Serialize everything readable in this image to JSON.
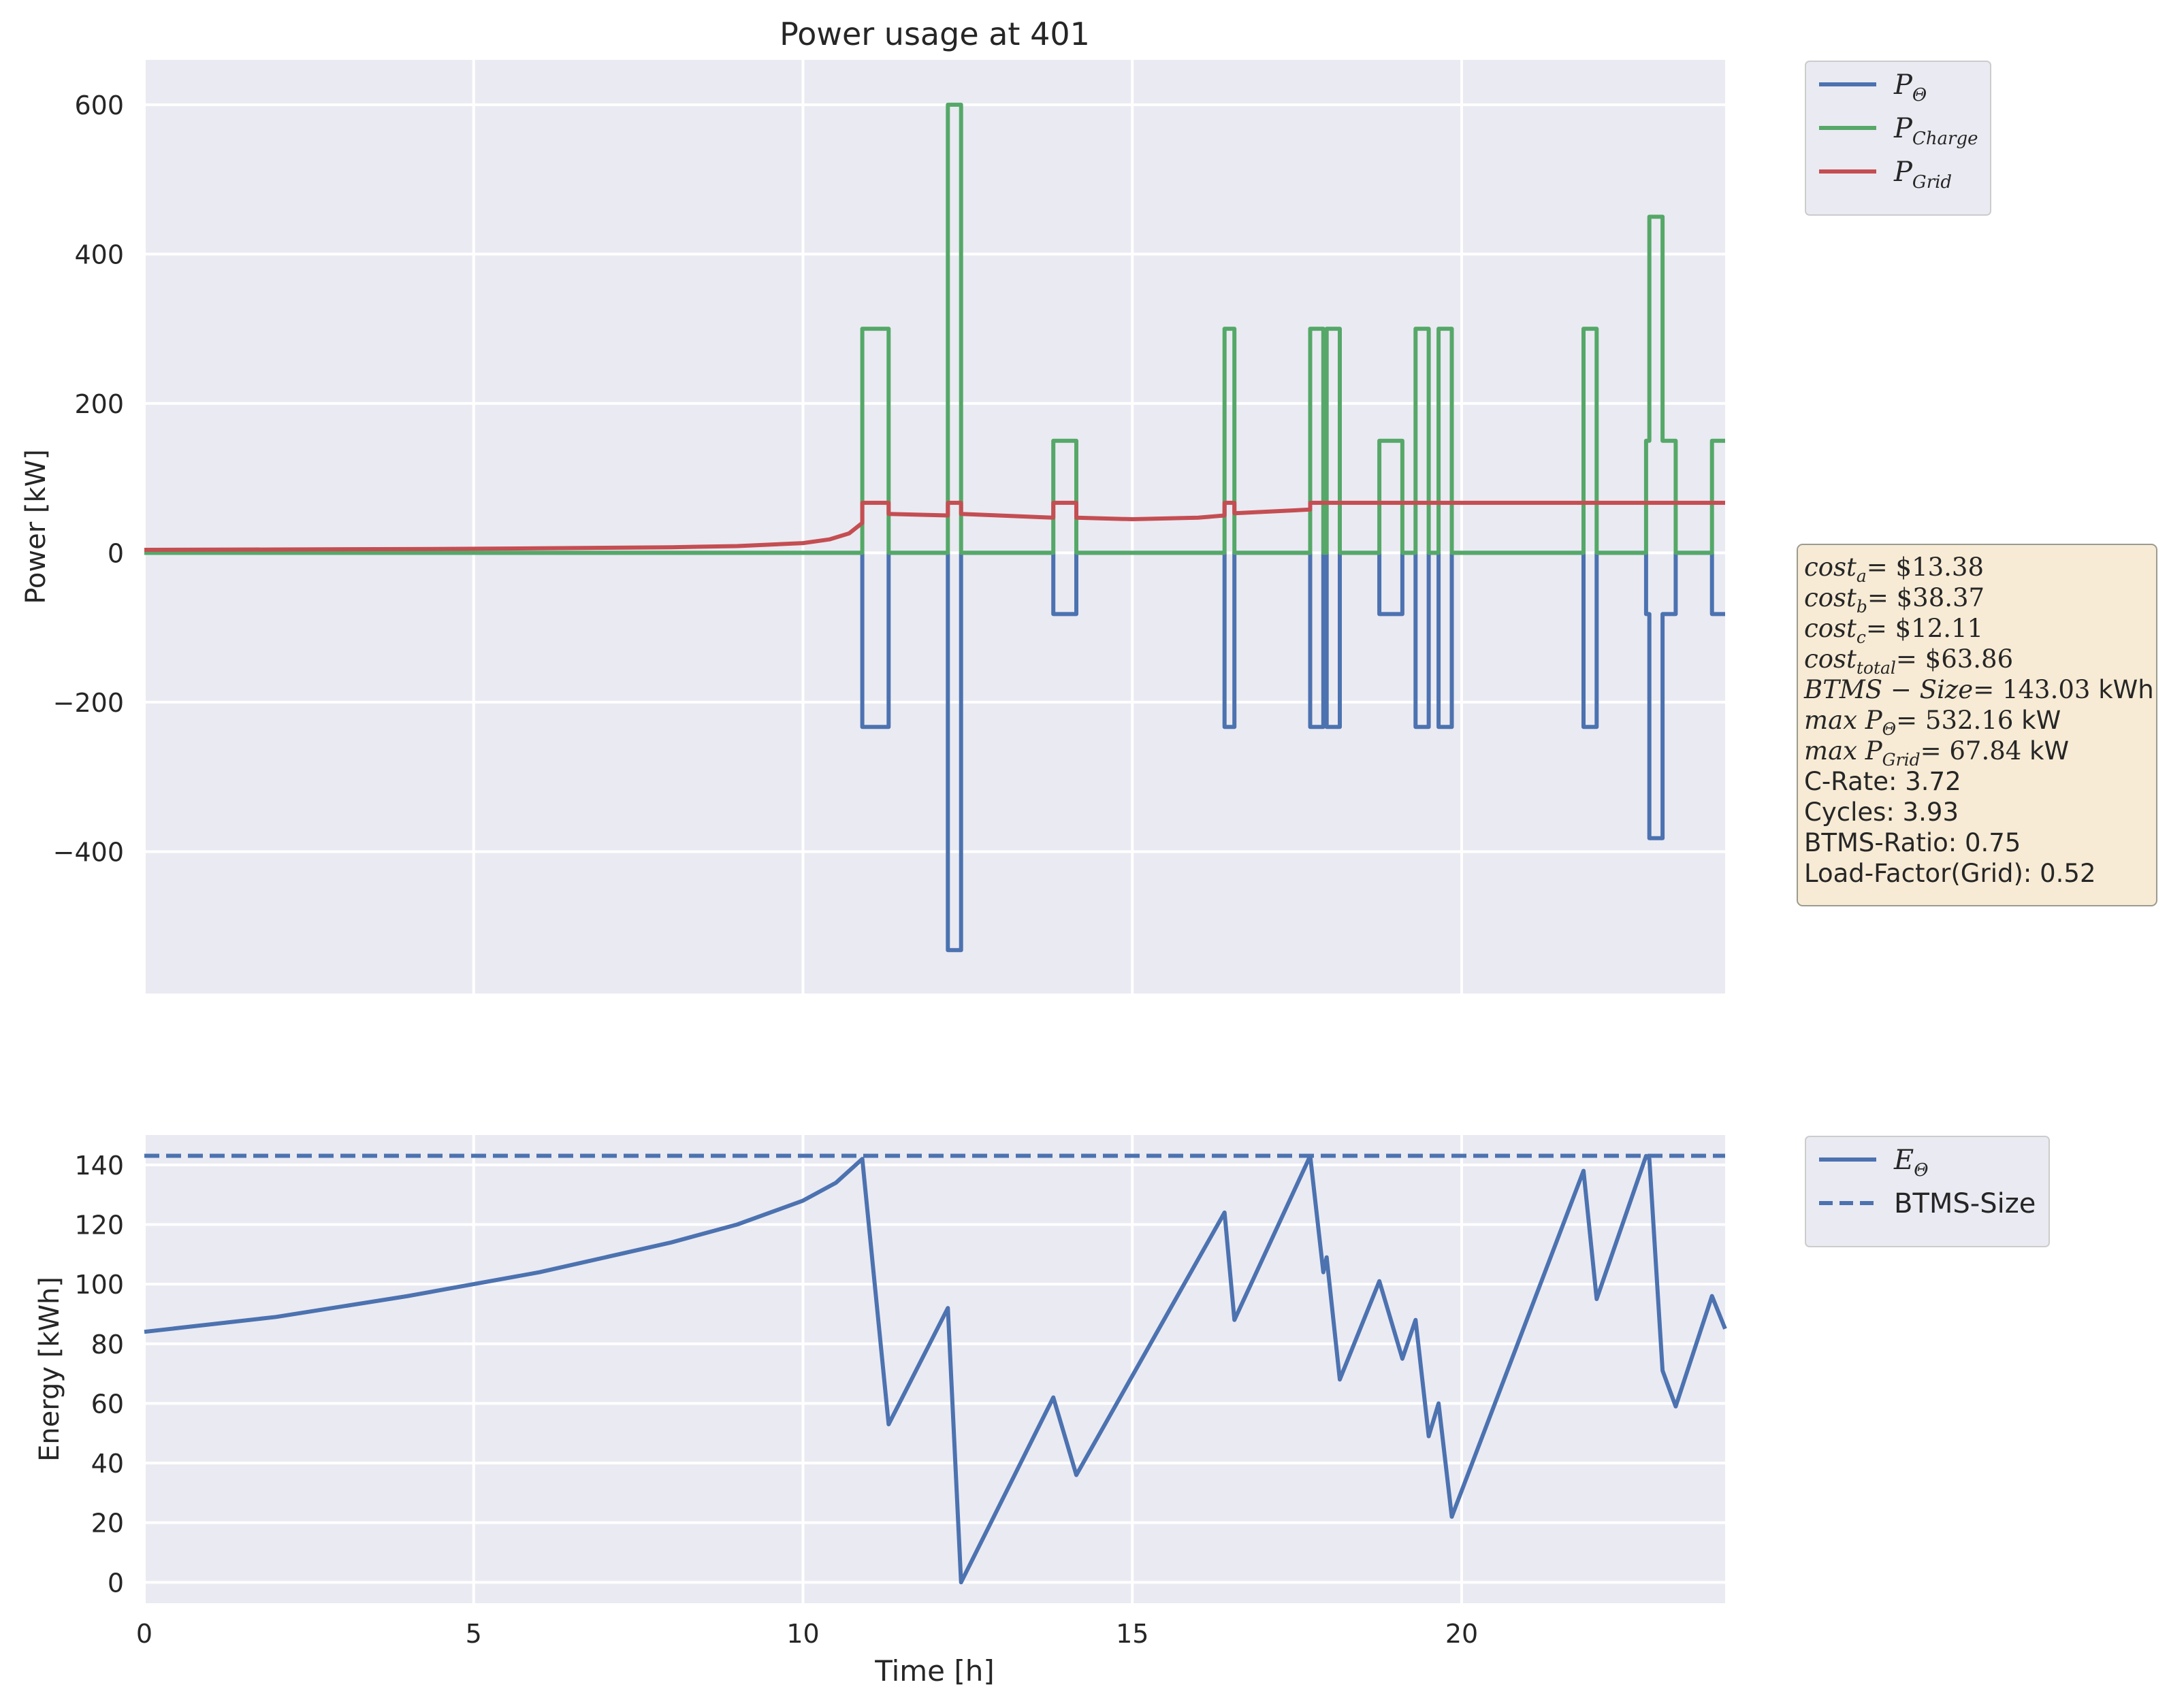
{
  "chart_data": [
    {
      "type": "line",
      "title": "Power usage at 401",
      "xlabel": "",
      "ylabel": "Power [kW]",
      "xlim": [
        0,
        24
      ],
      "ylim": [
        -590,
        660
      ],
      "xticks": [
        0,
        5,
        10,
        15,
        20
      ],
      "yticks": [
        "600",
        "400",
        "200",
        "0",
        "−200",
        "−400"
      ],
      "ytick_values": [
        600,
        400,
        200,
        0,
        -200,
        -400
      ],
      "grid": true,
      "legend_position": "outside-top-right",
      "legend": [
        {
          "base": "P",
          "sub": "Θ",
          "color": "#4c72b0"
        },
        {
          "base": "P",
          "sub": "Charge",
          "color": "#55a868"
        },
        {
          "base": "P",
          "sub": "Grid",
          "color": "#c44e52"
        }
      ],
      "series": [
        {
          "name": "P_Θ",
          "color": "#4c72b0",
          "step": true,
          "points": [
            [
              0,
              0
            ],
            [
              10.9,
              0
            ],
            [
              10.9,
              -233
            ],
            [
              11.3,
              -233
            ],
            [
              11.3,
              0
            ],
            [
              12.2,
              0
            ],
            [
              12.2,
              -532
            ],
            [
              12.4,
              -532
            ],
            [
              12.4,
              0
            ],
            [
              13.8,
              0
            ],
            [
              13.8,
              -82
            ],
            [
              14.15,
              -82
            ],
            [
              14.15,
              0
            ],
            [
              16.4,
              0
            ],
            [
              16.4,
              -233
            ],
            [
              16.55,
              -233
            ],
            [
              16.55,
              0
            ],
            [
              17.7,
              0
            ],
            [
              17.7,
              -233
            ],
            [
              17.9,
              -233
            ],
            [
              17.9,
              0
            ],
            [
              17.95,
              0
            ],
            [
              17.95,
              -233
            ],
            [
              18.15,
              -233
            ],
            [
              18.15,
              0
            ],
            [
              18.75,
              0
            ],
            [
              18.75,
              -82
            ],
            [
              19.1,
              -82
            ],
            [
              19.1,
              0
            ],
            [
              19.3,
              0
            ],
            [
              19.3,
              -233
            ],
            [
              19.5,
              -233
            ],
            [
              19.5,
              0
            ],
            [
              19.65,
              0
            ],
            [
              19.65,
              -233
            ],
            [
              19.85,
              -233
            ],
            [
              19.85,
              0
            ],
            [
              21.85,
              0
            ],
            [
              21.85,
              -233
            ],
            [
              22.05,
              -233
            ],
            [
              22.05,
              0
            ],
            [
              22.8,
              0
            ],
            [
              22.8,
              -82
            ],
            [
              22.85,
              -82
            ],
            [
              22.85,
              -382
            ],
            [
              23.05,
              -382
            ],
            [
              23.05,
              -82
            ],
            [
              23.25,
              -82
            ],
            [
              23.25,
              0
            ],
            [
              23.8,
              0
            ],
            [
              23.8,
              -82
            ],
            [
              24,
              -82
            ]
          ]
        },
        {
          "name": "P_Charge",
          "color": "#55a868",
          "step": true,
          "points": [
            [
              0,
              0
            ],
            [
              10.9,
              0
            ],
            [
              10.9,
              300
            ],
            [
              11.3,
              300
            ],
            [
              11.3,
              0
            ],
            [
              12.2,
              0
            ],
            [
              12.2,
              600
            ],
            [
              12.4,
              600
            ],
            [
              12.4,
              0
            ],
            [
              13.8,
              0
            ],
            [
              13.8,
              150
            ],
            [
              14.15,
              150
            ],
            [
              14.15,
              0
            ],
            [
              16.4,
              0
            ],
            [
              16.4,
              300
            ],
            [
              16.55,
              300
            ],
            [
              16.55,
              0
            ],
            [
              17.7,
              0
            ],
            [
              17.7,
              300
            ],
            [
              17.9,
              300
            ],
            [
              17.9,
              0
            ],
            [
              17.95,
              0
            ],
            [
              17.95,
              300
            ],
            [
              18.15,
              300
            ],
            [
              18.15,
              0
            ],
            [
              18.75,
              0
            ],
            [
              18.75,
              150
            ],
            [
              19.1,
              150
            ],
            [
              19.1,
              0
            ],
            [
              19.3,
              0
            ],
            [
              19.3,
              300
            ],
            [
              19.5,
              300
            ],
            [
              19.5,
              0
            ],
            [
              19.65,
              0
            ],
            [
              19.65,
              300
            ],
            [
              19.85,
              300
            ],
            [
              19.85,
              0
            ],
            [
              21.85,
              0
            ],
            [
              21.85,
              300
            ],
            [
              22.05,
              300
            ],
            [
              22.05,
              0
            ],
            [
              22.8,
              0
            ],
            [
              22.8,
              150
            ],
            [
              22.85,
              150
            ],
            [
              22.85,
              450
            ],
            [
              23.05,
              450
            ],
            [
              23.05,
              150
            ],
            [
              23.25,
              150
            ],
            [
              23.25,
              0
            ],
            [
              23.8,
              0
            ],
            [
              23.8,
              150
            ],
            [
              24,
              150
            ]
          ]
        },
        {
          "name": "P_Grid",
          "color": "#c44e52",
          "step": false,
          "points": [
            [
              0,
              4
            ],
            [
              2,
              4.5
            ],
            [
              4,
              5
            ],
            [
              6,
              6
            ],
            [
              8,
              7.5
            ],
            [
              9,
              9
            ],
            [
              10,
              13
            ],
            [
              10.4,
              18
            ],
            [
              10.7,
              26
            ],
            [
              10.9,
              40
            ],
            [
              10.9,
              67
            ],
            [
              11.3,
              67
            ],
            [
              11.3,
              52
            ],
            [
              12.2,
              50
            ],
            [
              12.2,
              67
            ],
            [
              12.4,
              67
            ],
            [
              12.4,
              52
            ],
            [
              13.8,
              47
            ],
            [
              13.8,
              67
            ],
            [
              14.15,
              67
            ],
            [
              14.15,
              47
            ],
            [
              15,
              45
            ],
            [
              16,
              47
            ],
            [
              16.4,
              50
            ],
            [
              16.4,
              67
            ],
            [
              16.55,
              67
            ],
            [
              16.55,
              53
            ],
            [
              17.7,
              58
            ],
            [
              17.7,
              67
            ],
            [
              24,
              67
            ]
          ]
        }
      ],
      "annotation": [
        {
          "base": "cost",
          "sub": "a",
          "value": "= $13.38",
          "math": true
        },
        {
          "base": "cost",
          "sub": "b",
          "value": "= $38.37",
          "math": true
        },
        {
          "base": "cost",
          "sub": "c",
          "value": "= $12.11",
          "math": true
        },
        {
          "base": "cost",
          "sub": "total",
          "value": "= $63.86",
          "math": true
        },
        {
          "base": "BTMS − Size",
          "sub": "",
          "value": "= 143.03",
          "unit": " kWh",
          "math": true
        },
        {
          "base": "max P",
          "sub": "Θ",
          "value": "= 532.16",
          "unit": " kW",
          "math": true
        },
        {
          "base": "max P",
          "sub": "Grid",
          "value": "= 67.84",
          "unit": " kW",
          "math": true
        },
        {
          "text": "C-Rate: 3.72"
        },
        {
          "text": "Cycles: 3.93"
        },
        {
          "text": "BTMS-Ratio: 0.75"
        },
        {
          "text": "Load-Factor(Grid): 0.52"
        }
      ]
    },
    {
      "type": "line",
      "title": "",
      "xlabel": "Time [h]",
      "ylabel": "Energy [kWh]",
      "xlim": [
        0,
        24
      ],
      "ylim": [
        -7,
        150
      ],
      "xticks": [
        0,
        5,
        10,
        15,
        20
      ],
      "yticks": [
        140,
        120,
        100,
        80,
        60,
        40,
        20,
        0
      ],
      "grid": true,
      "legend_position": "outside-top-right",
      "legend": [
        {
          "base": "E",
          "sub": "Θ",
          "color": "#4c72b0",
          "dash": false
        },
        {
          "text": "BTMS-Size",
          "color": "#4c72b0",
          "dash": true
        }
      ],
      "series": [
        {
          "name": "E_Θ",
          "color": "#4c72b0",
          "points": [
            [
              0,
              84
            ],
            [
              2,
              89
            ],
            [
              4,
              96
            ],
            [
              6,
              104
            ],
            [
              8,
              114
            ],
            [
              9,
              120
            ],
            [
              10,
              128
            ],
            [
              10.5,
              134
            ],
            [
              10.9,
              142
            ],
            [
              11.3,
              53
            ],
            [
              12.2,
              92
            ],
            [
              12.4,
              0
            ],
            [
              13.8,
              62
            ],
            [
              14.15,
              36
            ],
            [
              16.4,
              124
            ],
            [
              16.55,
              88
            ],
            [
              17.7,
              143
            ],
            [
              17.9,
              104
            ],
            [
              17.95,
              109
            ],
            [
              18.15,
              68
            ],
            [
              18.75,
              101
            ],
            [
              19.1,
              75
            ],
            [
              19.3,
              88
            ],
            [
              19.5,
              49
            ],
            [
              19.65,
              60
            ],
            [
              19.85,
              22
            ],
            [
              21.85,
              138
            ],
            [
              22.05,
              95
            ],
            [
              22.8,
              143
            ],
            [
              22.85,
              142
            ],
            [
              23.05,
              71
            ],
            [
              23.25,
              59
            ],
            [
              23.8,
              96
            ],
            [
              24,
              85
            ]
          ]
        },
        {
          "name": "BTMS-Size",
          "color": "#4c72b0",
          "dash": true,
          "points": [
            [
              0,
              143.03
            ],
            [
              24,
              143.03
            ]
          ]
        }
      ]
    }
  ]
}
